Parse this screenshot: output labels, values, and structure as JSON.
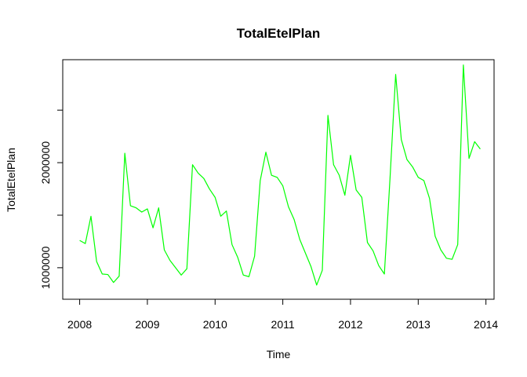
{
  "chart_data": {
    "type": "line",
    "title": "TotalEtelPlan",
    "xlabel": "Time",
    "ylabel": "TotalEtelPlan",
    "x_ticks": [
      2008,
      2009,
      2010,
      2011,
      2012,
      2013,
      2014
    ],
    "x_tick_labels": [
      "2008",
      "2009",
      "2010",
      "2011",
      "2012",
      "2013",
      "2014"
    ],
    "y_ticks": [
      1000000,
      1500000,
      2000000,
      2500000
    ],
    "y_tick_labels": [
      "1000000",
      "",
      "2000000",
      ""
    ],
    "xlim": [
      2007.75,
      2014.12
    ],
    "ylim": [
      700000,
      2980000
    ],
    "grid": false,
    "legend": "none",
    "series": [
      {
        "color": "#00ff00",
        "x_start": 2008.0,
        "step": 0.0833333,
        "values": [
          1260000,
          1230000,
          1490000,
          1060000,
          940000,
          935000,
          860000,
          920000,
          2090000,
          1590000,
          1570000,
          1530000,
          1560000,
          1380000,
          1570000,
          1170000,
          1070000,
          1000000,
          930000,
          990000,
          1980000,
          1900000,
          1850000,
          1750000,
          1670000,
          1490000,
          1540000,
          1220000,
          1100000,
          930000,
          915000,
          1110000,
          1830000,
          2100000,
          1880000,
          1860000,
          1780000,
          1580000,
          1460000,
          1270000,
          1140000,
          1010000,
          835000,
          975000,
          2450000,
          1980000,
          1880000,
          1690000,
          2070000,
          1740000,
          1670000,
          1240000,
          1160000,
          1020000,
          940000,
          1850000,
          2840000,
          2220000,
          2030000,
          1960000,
          1860000,
          1830000,
          1660000,
          1300000,
          1170000,
          1090000,
          1080000,
          1220000,
          2930000,
          2040000,
          2200000,
          2130000
        ]
      }
    ]
  }
}
